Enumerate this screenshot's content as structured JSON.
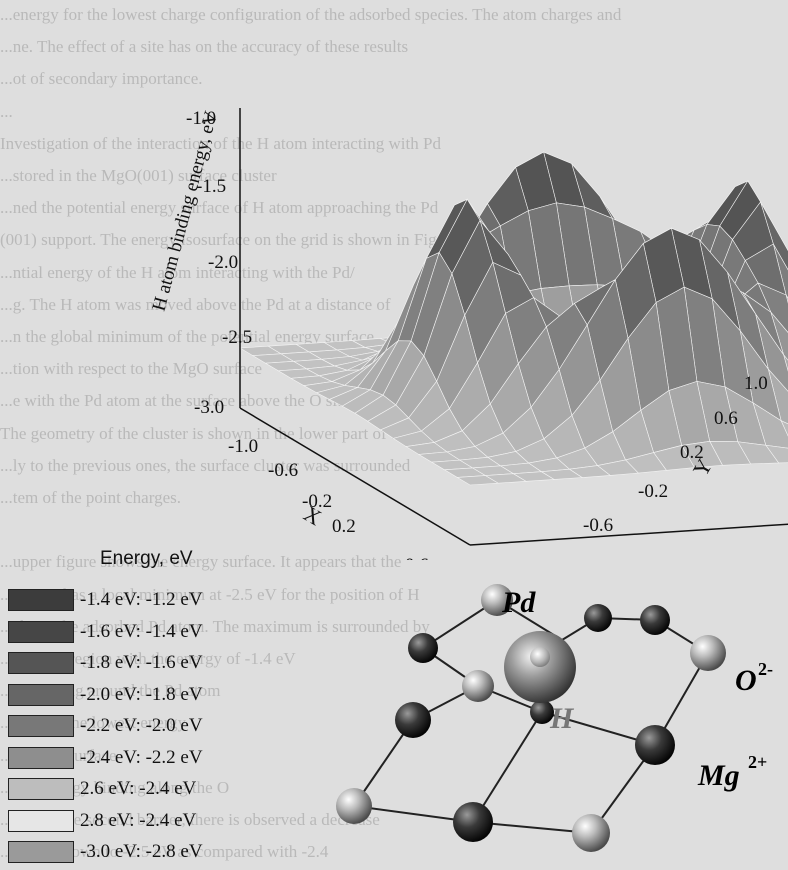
{
  "background_text": [
    "...energy for the lowest charge configuration of the adsorbed species. The atom charges and",
    "...ne. The effect of a site has on the accuracy of these results",
    "...ot of secondary importance.",
    "...",
    "Investigation of the interaction of the H atom interacting with Pd",
    "...stored in the MgO(001) surface cluster",
    "...ned the potential energy surface of H atom approaching the Pd",
    "(001) support. The energy isosurface on the grid is shown in Figure 3",
    "...ntial energy of the H atom interacting with the Pd/",
    "...g. The H atom was moved above the Pd at a distance of",
    "...n the global minimum of the potential energy surface",
    "...tion with respect to the MgO surface",
    "...e with the Pd atom at the surface above the O site",
    "The geometry of the cluster is shown in the lower part of the",
    "...ly to the previous ones, the surface cluster was surrounded",
    "...tem of the point charges.",
    "",
    "...upper figure shows the energy surface. It appears that the",
    "...energy has a local minimum at -2.5 eV for the position of H",
    "...above the adsorbed Pd atom. The maximum is surrounded by",
    "...circular region with the energy of -1.4 eV",
    "...of the ring around the Pd atom",
    "...ition of the lowest energy",
    "...the low surface",
    "...The energy binding along the O",
    "...ossing the second barrier, there is observed a decrease",
    "...energy down to -2.5 eV as compared with -2.4"
  ],
  "chart_data": {
    "type": "surface",
    "zlabel": "H atom binding energy, eV",
    "xlabel": "X",
    "ylabel": "Y",
    "x_ticks": [
      "-1.0",
      "-0.6",
      "-0.2",
      "0.2",
      "0.6",
      "1.0"
    ],
    "y_ticks": [
      "1.0",
      "0.6",
      "0.2",
      "-0.2",
      "-0.6"
    ],
    "z_ticks": [
      "-1.0",
      "-1.5",
      "-2.0",
      "-2.5",
      "-3.0"
    ],
    "xlim": [
      -1.0,
      1.0
    ],
    "ylim": [
      -1.0,
      1.0
    ],
    "zlim": [
      -3.0,
      -1.0
    ],
    "description": {
      "center_min": -3.0,
      "ring_max": -1.2,
      "corner_level": -2.6,
      "ring_radius": 0.55,
      "bumps": 4
    }
  },
  "legend": {
    "title": "Energy, eV",
    "items": [
      {
        "label": "-1.4 eV: -1.2 eV",
        "color": "#3c3c3c"
      },
      {
        "label": "-1.6 eV: -1.4 eV",
        "color": "#464646"
      },
      {
        "label": "-1.8 eV: -1.6 eV",
        "color": "#555555"
      },
      {
        "label": "-2.0 eV: -1.8 eV",
        "color": "#666666"
      },
      {
        "label": "-2.2 eV: -2.0 eV",
        "color": "#787878"
      },
      {
        "label": "-2.4 eV: -2.2 eV",
        "color": "#8e8e8e"
      },
      {
        "label": "2.6 eV: -2.4 eV",
        "color": "#bdbdbd"
      },
      {
        "label": "2.8 eV: -2.4 eV",
        "color": "#e6e6e6"
      },
      {
        "label": "-3.0 eV: -2.8 eV",
        "color": "#9a9a9a"
      }
    ]
  },
  "molecule": {
    "labels": {
      "pd": "Pd",
      "h": "H",
      "o": "O",
      "o_charge": "2-",
      "mg": "Mg",
      "mg_charge": "2+"
    }
  }
}
